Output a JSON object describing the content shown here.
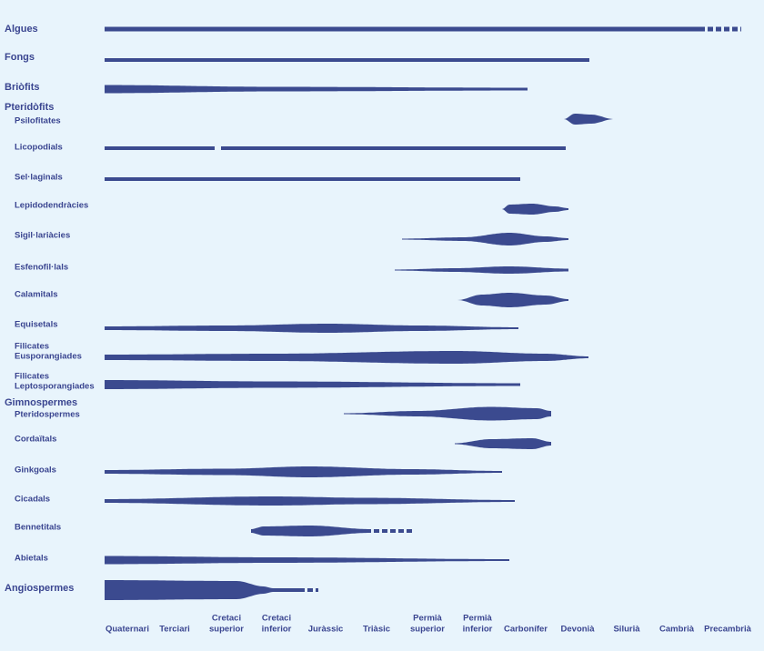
{
  "rows": [
    {
      "label": [
        "Algues"
      ]
    },
    {
      "label": [
        "Fongs"
      ]
    },
    {
      "label": [
        "Briòfits"
      ]
    },
    {
      "label": [
        "Pteridòfits"
      ]
    },
    {
      "label": [
        "Psilofitates"
      ]
    },
    {
      "label": [
        "Licopodials"
      ]
    },
    {
      "label": [
        "Sel·laginals"
      ]
    },
    {
      "label": [
        "Lepidodendràcies"
      ]
    },
    {
      "label": [
        "Sigil·lariàcies"
      ]
    },
    {
      "label": [
        "Esfenofil·lals"
      ]
    },
    {
      "label": [
        "Calamitals"
      ]
    },
    {
      "label": [
        "Equisetals"
      ]
    },
    {
      "label": [
        "Filicates",
        "Eusporangiades"
      ]
    },
    {
      "label": [
        "Filicates",
        "Leptosporangiades"
      ]
    },
    {
      "label": [
        "Gimnospermes"
      ]
    },
    {
      "label": [
        "Pteridospermes"
      ]
    },
    {
      "label": [
        "Cordaïtals"
      ]
    },
    {
      "label": [
        "Ginkgoals"
      ]
    },
    {
      "label": [
        "Cicadals"
      ]
    },
    {
      "label": [
        "Bennetitals"
      ]
    },
    {
      "label": [
        "Abietals"
      ]
    },
    {
      "label": [
        "Angiospermes"
      ]
    }
  ],
  "periods": [
    {
      "label": [
        "Quaternari"
      ]
    },
    {
      "label": [
        "Terciari"
      ]
    },
    {
      "label": [
        "Cretaci",
        "superior"
      ]
    },
    {
      "label": [
        "Cretaci",
        "inferior"
      ]
    },
    {
      "label": [
        "Juràssic"
      ]
    },
    {
      "label": [
        "Triàsic"
      ]
    },
    {
      "label": [
        "Permià",
        "superior"
      ]
    },
    {
      "label": [
        "Permià",
        "inferior"
      ]
    },
    {
      "label": [
        "Carbonífer"
      ]
    },
    {
      "label": [
        "Devonià"
      ]
    },
    {
      "label": [
        "Silurià"
      ]
    },
    {
      "label": [
        "Cambrià"
      ]
    },
    {
      "label": [
        "Precambrià"
      ]
    }
  ]
}
